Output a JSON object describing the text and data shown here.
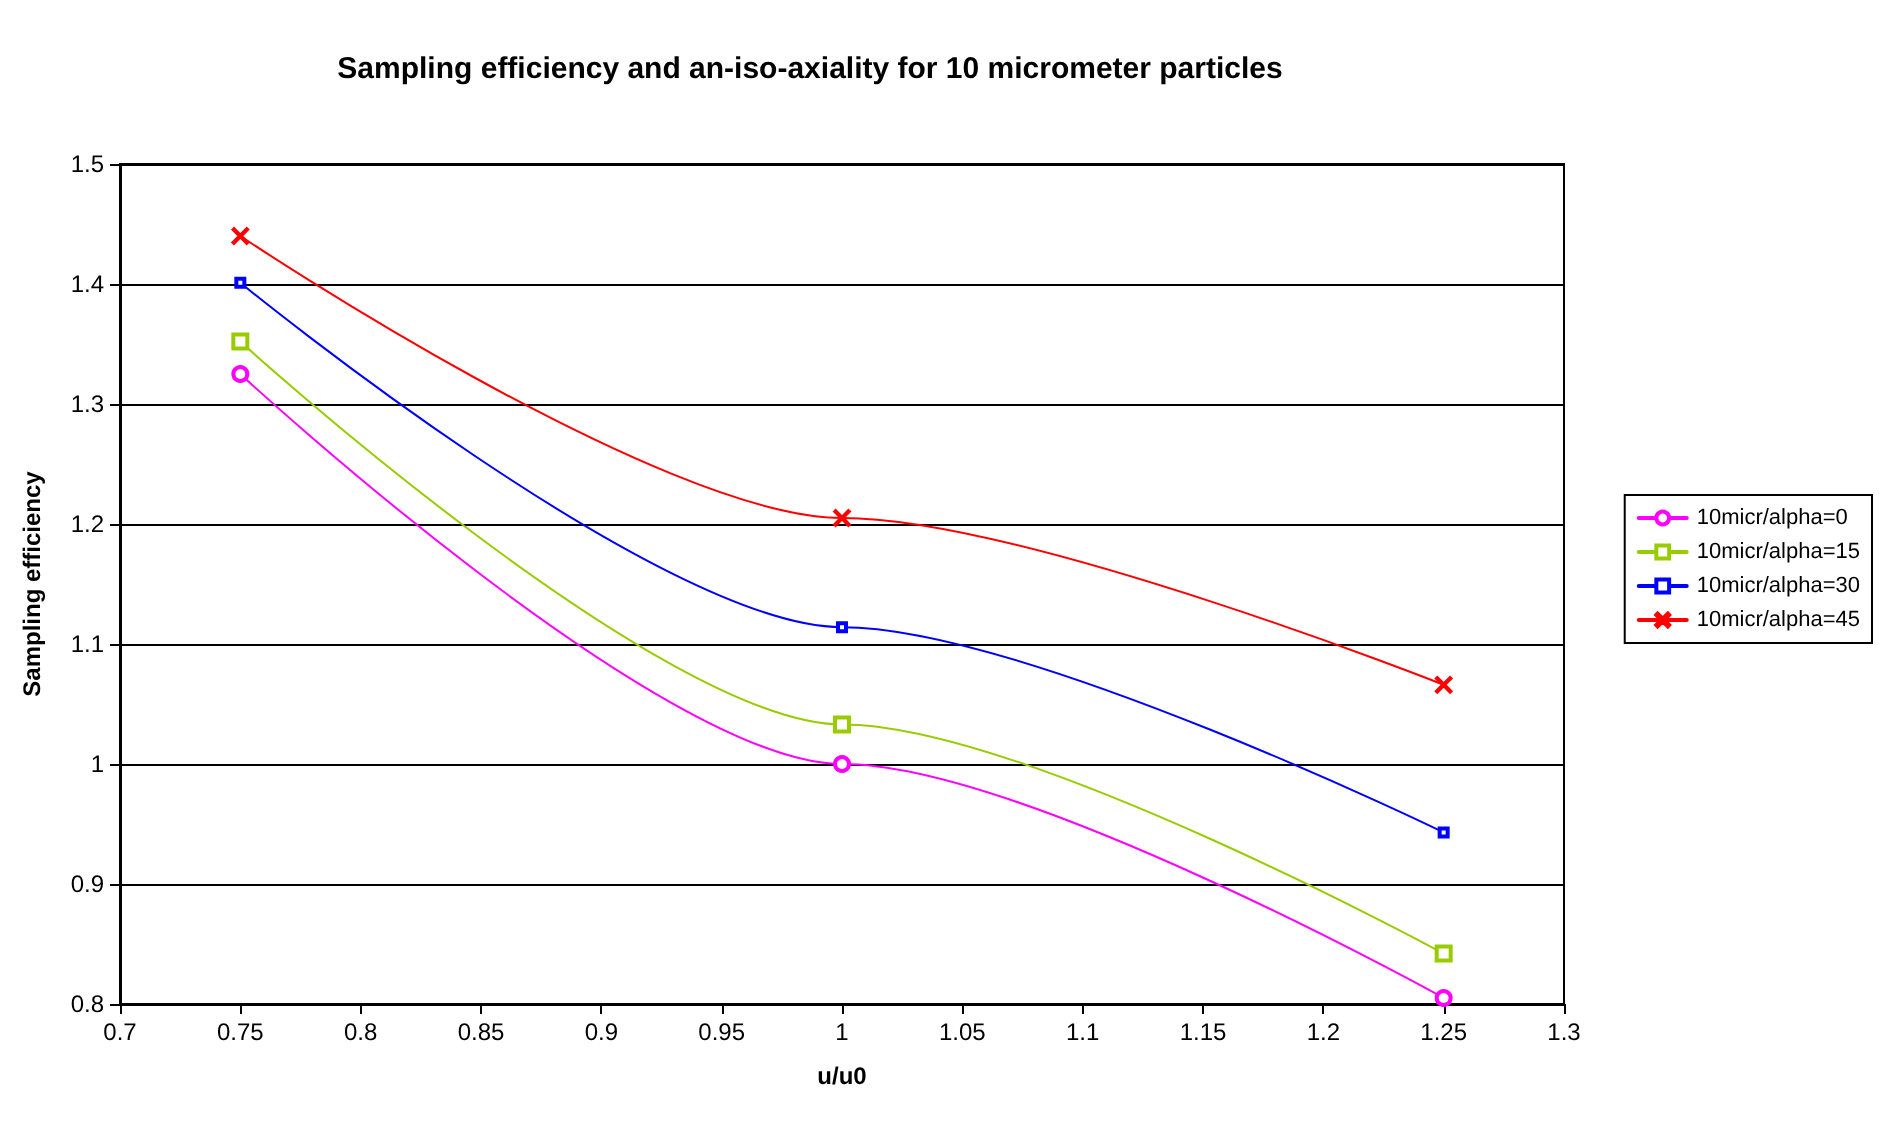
{
  "chart_data": {
    "type": "line",
    "title": "Sampling efficiency and an-iso-axiality for 10 micrometer particles",
    "xlabel": "u/u0",
    "ylabel": "Sampling efficiency",
    "x": [
      0.75,
      1,
      1.25
    ],
    "series": [
      {
        "name": "10micr/alpha=0",
        "color": "#ff00ff",
        "marker": "circle",
        "values": [
          1.325,
          1.0,
          0.805
        ]
      },
      {
        "name": "10micr/alpha=15",
        "color": "#99cc00",
        "marker": "square",
        "values": [
          1.352,
          1.033,
          0.842
        ]
      },
      {
        "name": "10micr/alpha=30",
        "color": "#0000ff",
        "marker": "square",
        "values": [
          1.401,
          1.114,
          0.943
        ]
      },
      {
        "name": "10micr/alpha=45",
        "color": "#ff0000",
        "marker": "cross",
        "values": [
          1.44,
          1.205,
          1.066
        ]
      }
    ],
    "xlim": [
      0.7,
      1.3
    ],
    "xticks": [
      0.7,
      0.75,
      0.8,
      0.85,
      0.9,
      0.95,
      1,
      1.05,
      1.1,
      1.15,
      1.2,
      1.25,
      1.3
    ],
    "ylim": [
      0.8,
      1.5
    ],
    "yticks": [
      0.8,
      0.9,
      1,
      1.1,
      1.2,
      1.3,
      1.4,
      1.5
    ],
    "grid": "y",
    "legend": "right",
    "line_style": "solid"
  }
}
